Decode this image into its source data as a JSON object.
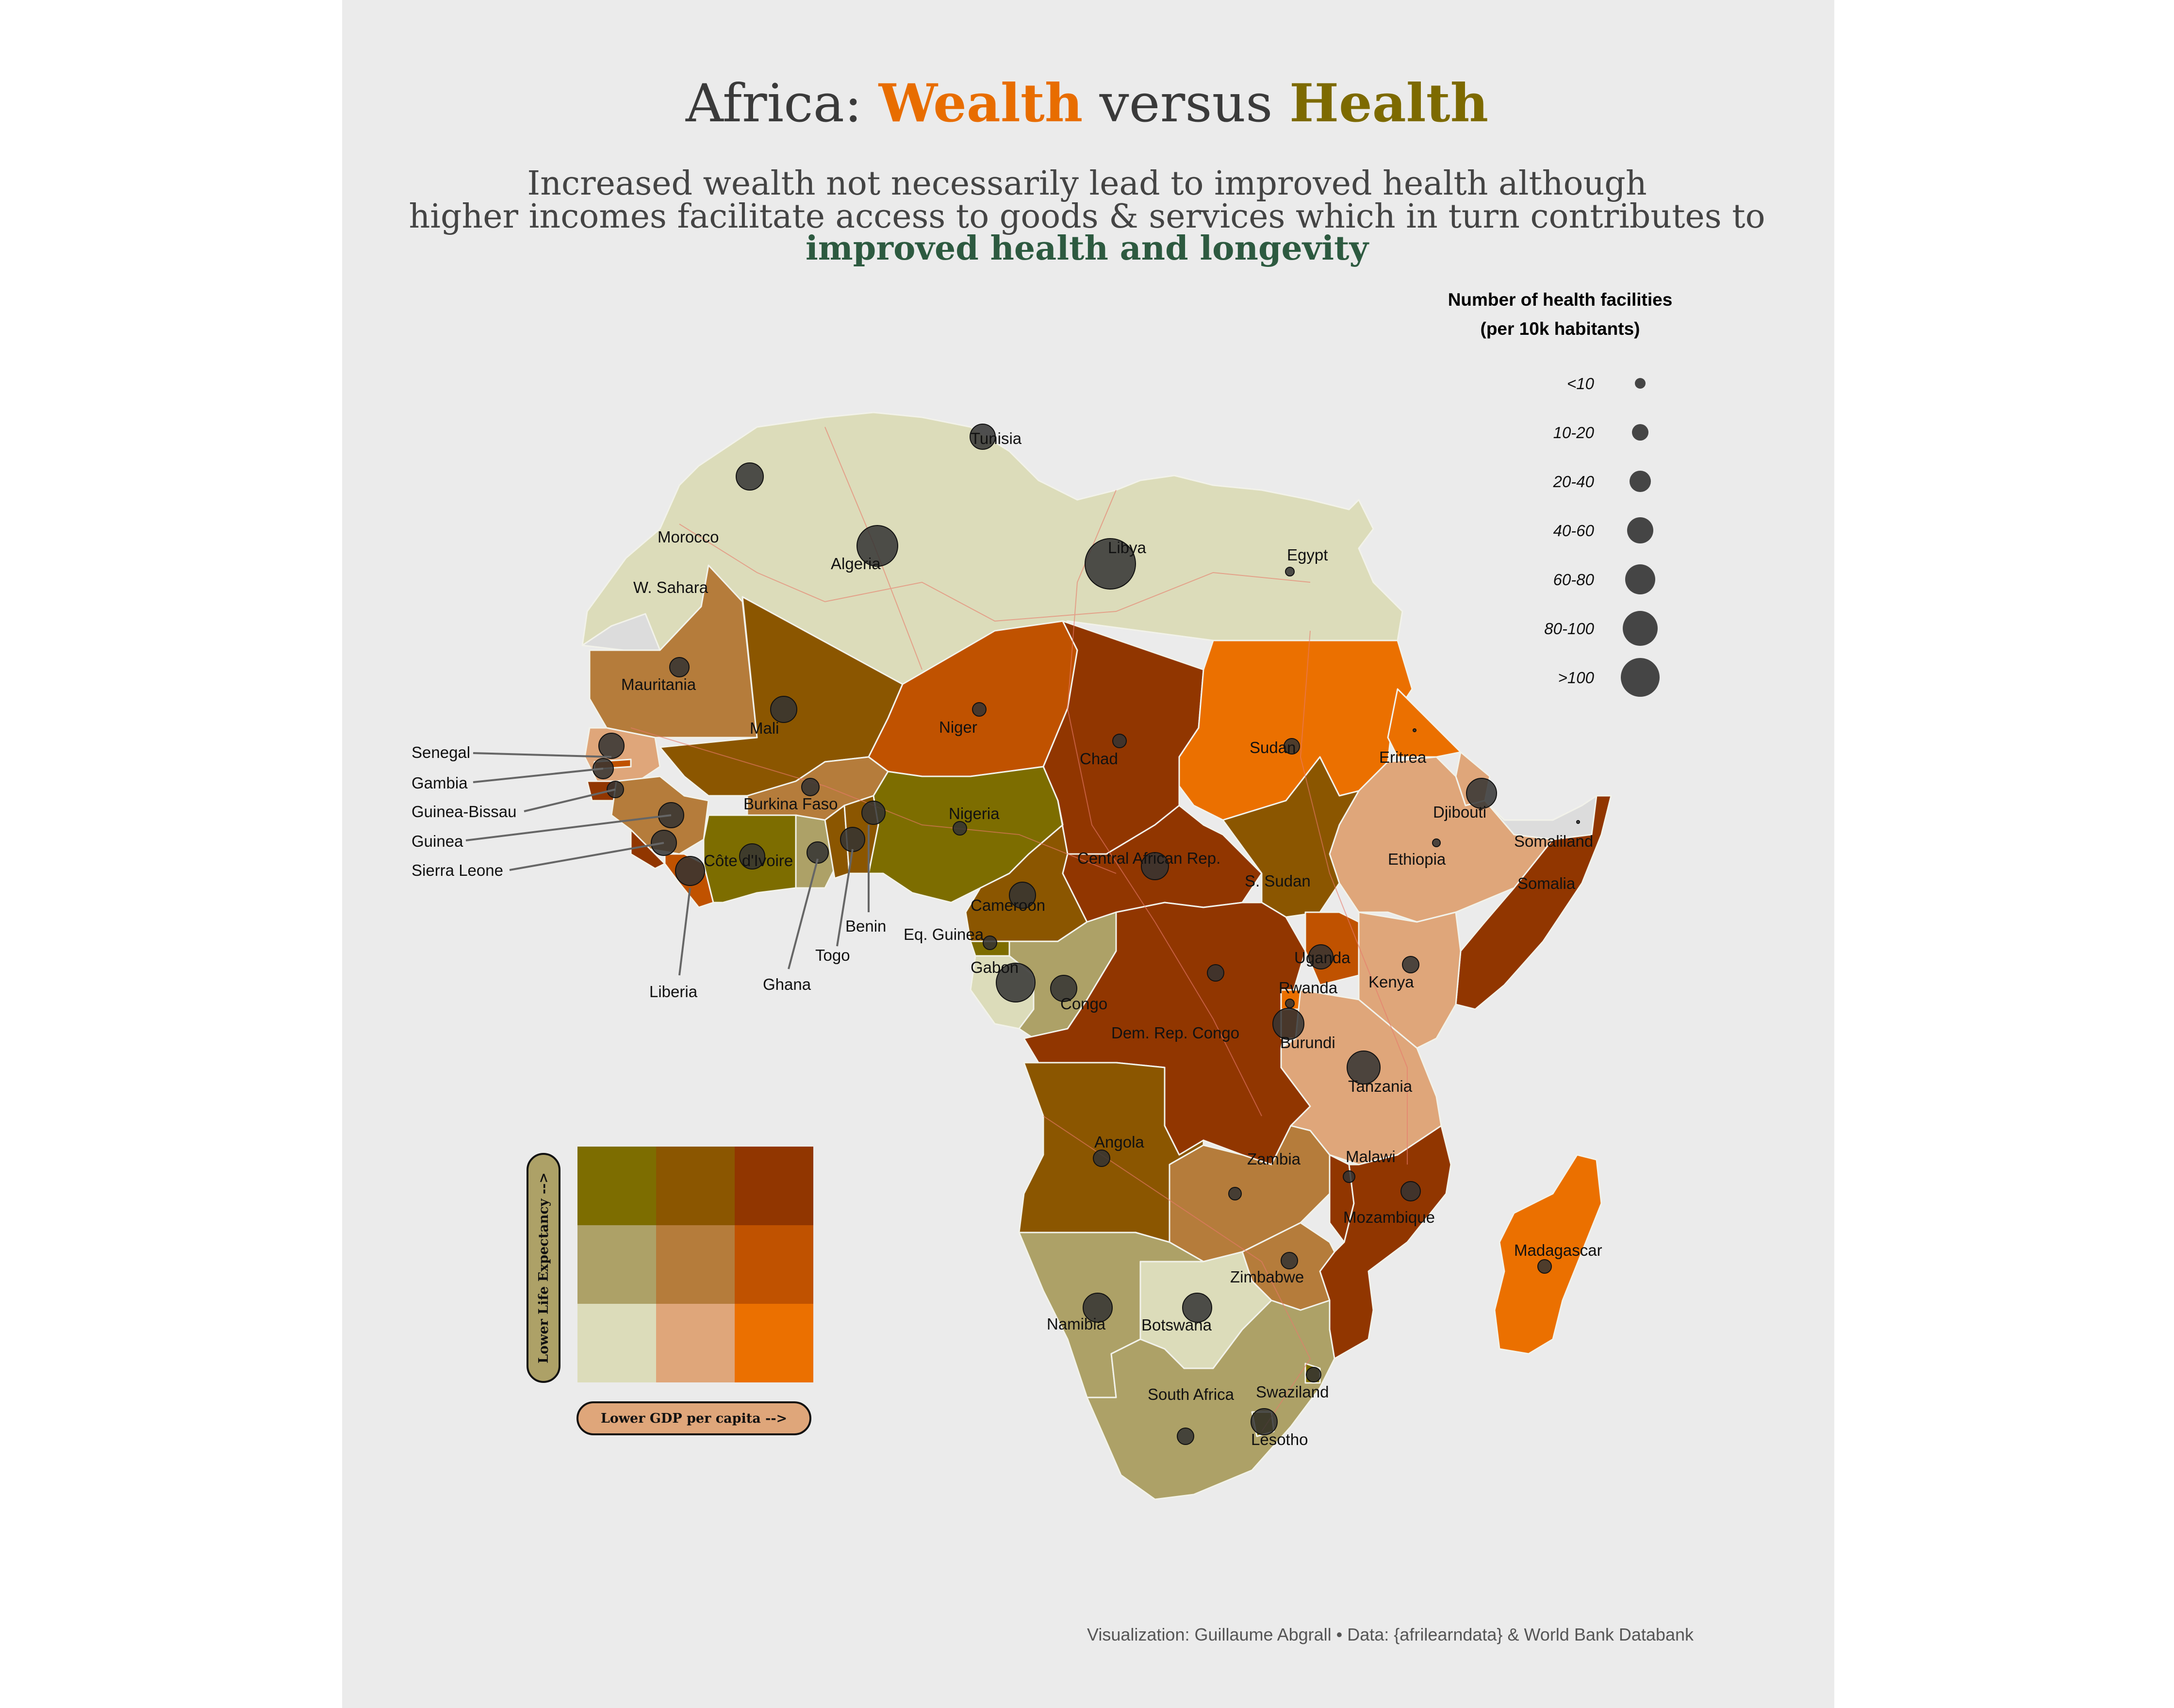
{
  "title": {
    "prefix": "Africa: ",
    "wealth": "Wealth",
    "mid": " versus ",
    "health": "Health"
  },
  "subtitle": {
    "line1": "Increased wealth not necessarily lead to improved health although",
    "line2": "higher incomes facilitate access to goods & services which in turn contributes to",
    "line3": "improved health and longevity"
  },
  "size_legend": {
    "title1": "Number of health facilities",
    "title2": "(per 10k habitants)",
    "items": [
      "<10",
      "10-20",
      "20-40",
      "40-60",
      "60-80",
      "80-100",
      ">100"
    ]
  },
  "bivariate_legend": {
    "y_label": "Lower Life Expectancy -->",
    "x_label": "Lower GDP per capita -->",
    "colors": {
      "r1": [
        "#7d6d00",
        "#8b5600",
        "#913600"
      ],
      "r2": [
        "#ada167",
        "#b57c3b",
        "#c05200"
      ],
      "r3": [
        "#dcdcba",
        "#dfa67a",
        "#eb7000"
      ]
    }
  },
  "countries": {
    "tunisia": "Tunisia",
    "morocco": "Morocco",
    "algeria": "Algeria",
    "libya": "Libya",
    "egypt": "Egypt",
    "w_sahara": "W. Sahara",
    "mauritania": "Mauritania",
    "mali": "Mali",
    "niger": "Niger",
    "chad": "Chad",
    "sudan": "Sudan",
    "eritrea": "Eritrea",
    "djibouti": "Djibouti",
    "somaliland": "Somaliland",
    "ethiopia": "Ethiopia",
    "somalia": "Somalia",
    "senegal": "Senegal",
    "gambia": "Gambia",
    "guinea_bissau": "Guinea-Bissau",
    "guinea": "Guinea",
    "sierra_leone": "Sierra Leone",
    "liberia": "Liberia",
    "cote_divoire": "Côte d'Ivoire",
    "burkina_faso": "Burkina Faso",
    "ghana": "Ghana",
    "togo": "Togo",
    "benin": "Benin",
    "nigeria": "Nigeria",
    "cameroon": "Cameroon",
    "car": "Central African Rep.",
    "s_sudan": "S. Sudan",
    "eq_guinea": "Eq. Guinea",
    "gabon": "Gabon",
    "congo": "Congo",
    "drc": "Dem. Rep. Congo",
    "uganda": "Uganda",
    "kenya": "Kenya",
    "rwanda": "Rwanda",
    "burundi": "Burundi",
    "tanzania": "Tanzania",
    "angola": "Angola",
    "zambia": "Zambia",
    "malawi": "Malawi",
    "mozambique": "Mozambique",
    "madagascar": "Madagascar",
    "zimbabwe": "Zimbabwe",
    "namibia": "Namibia",
    "botswana": "Botswana",
    "south_africa": "South Africa",
    "swaziland": "Swaziland",
    "lesotho": "Lesotho"
  },
  "caption": "Visualization: Guillaume  Abgrall • Data: {afrilearndata} & World Bank Databank",
  "colors": {
    "background": "#ebebeb",
    "bubble": "#333333",
    "wealth": "#e86d00",
    "health": "#7d6a00",
    "accent": "#2d5a40"
  }
}
